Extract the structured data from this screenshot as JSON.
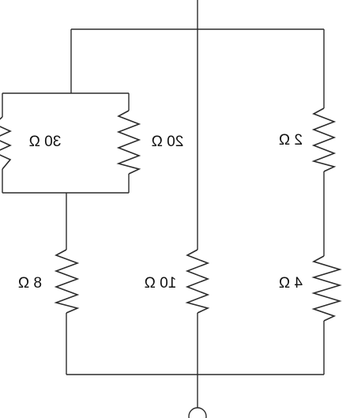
{
  "resistor_labels": {
    "r_30": "30 Ω",
    "r_20": "20 Ω",
    "r_2": "2 Ω",
    "r_8": "8 Ω",
    "r_10": "10 Ω",
    "r_4": "4 Ω"
  }
}
